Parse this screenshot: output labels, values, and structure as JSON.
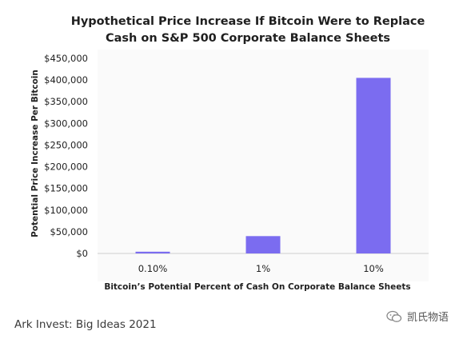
{
  "chart_data": {
    "type": "bar",
    "title_lines": [
      "Hypothetical Price Increase If Bitcoin Were to Replace",
      "Cash on S&P 500 Corporate Balance Sheets"
    ],
    "categories": [
      "0.10%",
      "1%",
      "10%"
    ],
    "values": [
      4000,
      40000,
      405000
    ],
    "xlabel": "Bitcoin’s Potential Percent of Cash On Corporate Balance Sheets",
    "ylabel": "Potential Price Increase Per Bitcoin",
    "ylim": [
      0,
      450000
    ],
    "yticks": [
      "$0",
      "$50,000",
      "$100,000",
      "$150,000",
      "$200,000",
      "$250,000",
      "$300,000",
      "$350,000",
      "$400,000",
      "$450,000"
    ],
    "ytick_values": [
      0,
      50000,
      100000,
      150000,
      200000,
      250000,
      300000,
      350000,
      400000,
      450000
    ],
    "bar_color": "#7b6cf0",
    "grid": false
  },
  "source": "Ark Invest: Big Ideas 2021",
  "watermark": {
    "text": "凯氏物语",
    "icon": "wechat-icon"
  }
}
